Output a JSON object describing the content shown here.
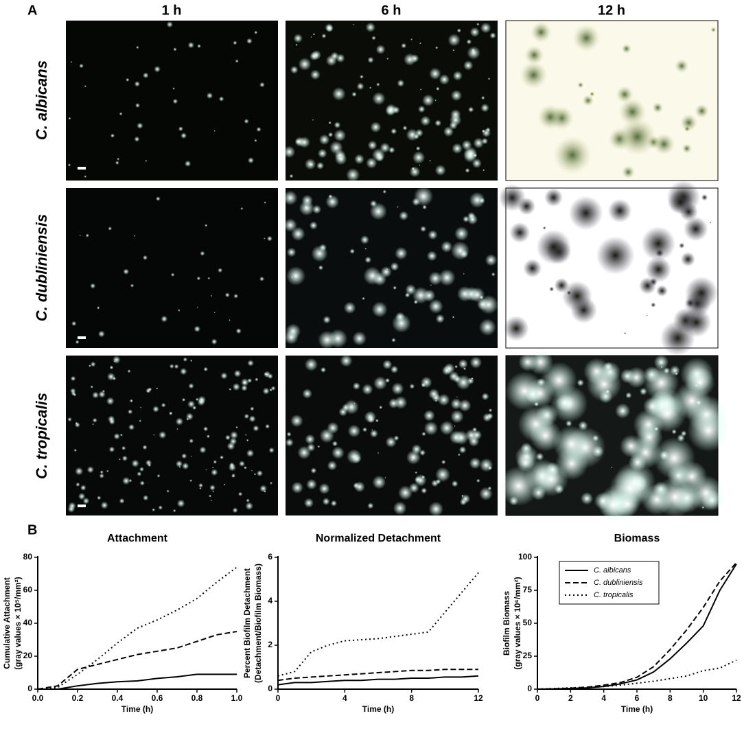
{
  "panel_a": {
    "label": "A",
    "columns": [
      "1 h",
      "6 h",
      "12 h"
    ],
    "rows": [
      "C. albicans",
      "C. dubliniensis",
      "C. tropicalis"
    ]
  },
  "panel_b_label": "B",
  "chart_data": [
    {
      "type": "line",
      "title": "Attachment",
      "x_label": "Time (h)",
      "y_label": [
        "Cumulative Attachment",
        "(gray values × 10⁵/mm²)"
      ],
      "x": [
        0,
        0.1,
        0.2,
        0.3,
        0.4,
        0.5,
        0.6,
        0.7,
        0.8,
        0.9,
        1.0
      ],
      "xlim": [
        0,
        1.0
      ],
      "xticks": [
        {
          "value": 0,
          "label": "0.0"
        },
        0.2,
        0.4,
        0.6,
        0.8,
        {
          "value": 1.0,
          "label": "1.0"
        }
      ],
      "ylim": [
        0,
        80
      ],
      "yticks": [
        0,
        20,
        40,
        60,
        80
      ],
      "series": [
        {
          "name": "C. albicans",
          "color": "#000000",
          "dash": "solid",
          "values": [
            0,
            0,
            2,
            3.5,
            4.5,
            5,
            6.5,
            7.5,
            9,
            9,
            9
          ]
        },
        {
          "name": "C. dubliniensis",
          "color": "#000000",
          "dash": "dashed",
          "values": [
            0,
            2,
            12,
            15,
            18,
            21,
            23,
            25,
            29,
            33,
            35
          ]
        },
        {
          "name": "C. tropicalis",
          "color": "#000000",
          "dash": "dotted",
          "values": [
            0,
            1,
            9,
            18,
            28,
            37,
            42,
            48,
            55,
            65,
            74
          ]
        }
      ]
    },
    {
      "type": "line",
      "title": "Normalized Detachment",
      "x_label": "Time (h)",
      "y_label": [
        "Percent  Biofilm  Detachment",
        "(Detachment/Biofilm Biomass)"
      ],
      "x": [
        0,
        1,
        2,
        3,
        4,
        5,
        6,
        7,
        8,
        9,
        10,
        11,
        12
      ],
      "xlim": [
        0,
        12
      ],
      "xticks": [
        0,
        4,
        8,
        12
      ],
      "ylim": [
        0,
        6
      ],
      "yticks": [
        0,
        2,
        4,
        6
      ],
      "series": [
        {
          "name": "C. albicans",
          "color": "#000000",
          "dash": "solid",
          "values": [
            0.2,
            0.3,
            0.3,
            0.35,
            0.4,
            0.4,
            0.45,
            0.45,
            0.5,
            0.5,
            0.55,
            0.55,
            0.6
          ]
        },
        {
          "name": "C. dubliniensis",
          "color": "#000000",
          "dash": "dashed",
          "values": [
            0.4,
            0.5,
            0.55,
            0.6,
            0.65,
            0.7,
            0.75,
            0.8,
            0.85,
            0.85,
            0.9,
            0.9,
            0.9
          ]
        },
        {
          "name": "C. tropicalis",
          "color": "#000000",
          "dash": "dotted",
          "values": [
            0.6,
            0.8,
            1.7,
            2.0,
            2.2,
            2.25,
            2.3,
            2.4,
            2.5,
            2.6,
            3.5,
            4.4,
            5.3
          ]
        }
      ]
    },
    {
      "type": "line",
      "title": "Biomass",
      "x_label": "Time (h)",
      "y_label": [
        "Biofilm Biomass",
        "(gray values × 10⁶/mm²)"
      ],
      "x": [
        0,
        1,
        2,
        3,
        4,
        5,
        6,
        7,
        8,
        9,
        10,
        11,
        12
      ],
      "xlim": [
        0,
        12
      ],
      "xticks": [
        0,
        2,
        4,
        6,
        8,
        10,
        12
      ],
      "ylim": [
        0,
        100
      ],
      "yticks": [
        0,
        25,
        50,
        75,
        100
      ],
      "legend": "upper-left",
      "series": [
        {
          "name": "C. albicans",
          "color": "#000000",
          "dash": "solid",
          "values": [
            0,
            0.2,
            0.5,
            1,
            2,
            4,
            7,
            13,
            23,
            35,
            48,
            75,
            95
          ]
        },
        {
          "name": "C. dubliniensis",
          "color": "#000000",
          "dash": "dashed",
          "values": [
            0,
            0.3,
            0.7,
            1.5,
            3,
            5,
            9,
            17,
            30,
            45,
            62,
            82,
            96
          ]
        },
        {
          "name": "C. tropicalis",
          "color": "#000000",
          "dash": "dotted",
          "values": [
            0,
            0.5,
            1,
            1.5,
            2,
            3,
            4.5,
            6,
            8,
            10,
            14,
            16,
            22
          ]
        }
      ]
    }
  ]
}
